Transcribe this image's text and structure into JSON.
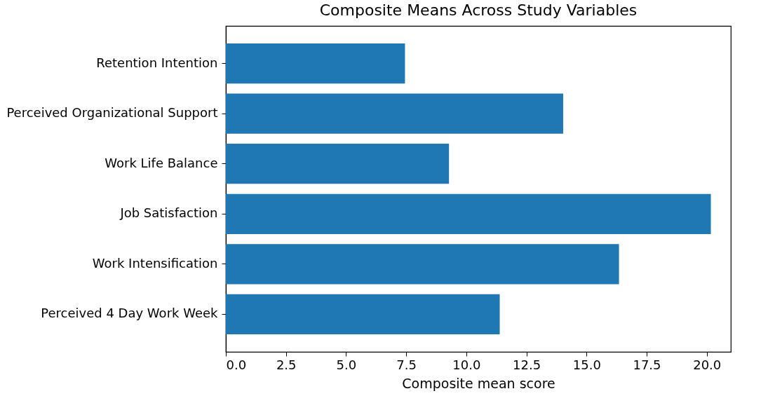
{
  "chart_data": {
    "type": "bar",
    "orientation": "horizontal",
    "title": "Composite Means Across Study Variables",
    "xlabel": "Composite mean score",
    "categories": [
      "Retention Intention",
      "Perceived Organizational Support",
      "Work Life Balance",
      "Job Satisfaction",
      "Work Intensification",
      "Perceived 4 Day Work Week"
    ],
    "values": [
      7.45,
      14.03,
      9.28,
      20.17,
      16.35,
      11.39
    ],
    "color": "#1f77b4",
    "xlim": [
      0,
      21
    ],
    "xticks": [
      {
        "value": 0,
        "label": "0.0"
      },
      2.5,
      {
        "value": 5,
        "label": "5.0"
      },
      7.5,
      {
        "value": 10,
        "label": "10.0"
      },
      12.5,
      {
        "value": 15,
        "label": "15.0"
      },
      17.5,
      {
        "value": 20,
        "label": "20.0"
      }
    ],
    "grid": false
  }
}
